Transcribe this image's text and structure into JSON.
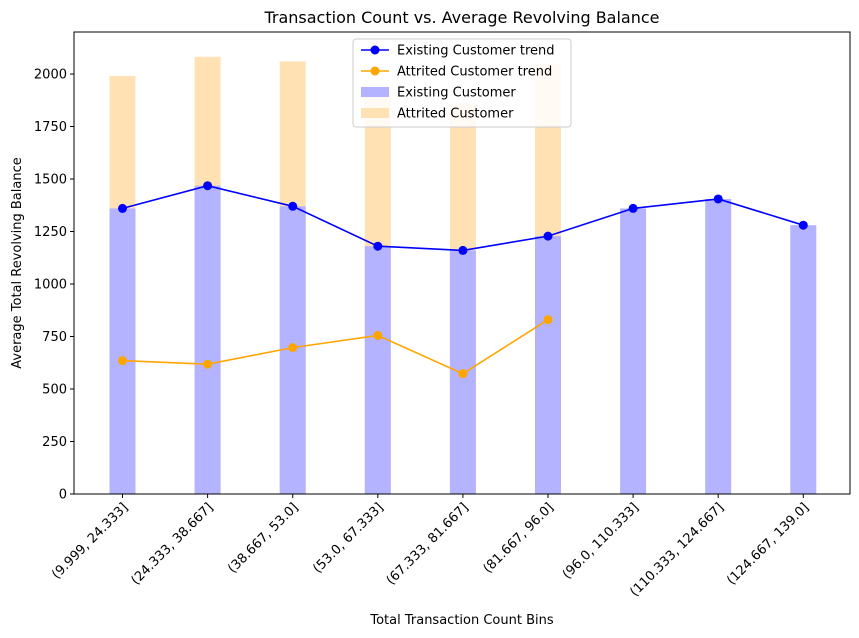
{
  "chart_data": {
    "type": "bar",
    "title": "Transaction Count vs. Average Revolving Balance",
    "xlabel": "Total Transaction Count Bins",
    "ylabel": "Average Total Revolving Balance",
    "ylim": [
      0,
      2200
    ],
    "yticks": [
      0,
      250,
      500,
      750,
      1000,
      1250,
      1500,
      1750,
      2000
    ],
    "categories": [
      "(9.999, 24.333]",
      "(24.333, 38.667]",
      "(38.667, 53.0]",
      "(53.0, 67.333]",
      "(67.333, 81.667]",
      "(81.667, 96.0]",
      "(96.0, 110.333]",
      "(110.333, 124.667]",
      "(124.667, 139.0]"
    ],
    "bar_series": [
      {
        "name": "Existing Customer",
        "color": "#b3b3ff",
        "values": [
          1360,
          1468,
          1370,
          1180,
          1160,
          1228,
          1360,
          1405,
          1280
        ]
      },
      {
        "name": "Attrited Customer",
        "color": "#ffe1b3",
        "values": [
          1990,
          2082,
          2060,
          1895,
          1860,
          2050,
          null,
          null,
          null
        ]
      }
    ],
    "line_series": [
      {
        "name": "Existing Customer trend",
        "color": "#0000ff",
        "values": [
          1360,
          1468,
          1370,
          1180,
          1160,
          1228,
          1360,
          1405,
          1280
        ]
      },
      {
        "name": "Attrited Customer trend",
        "color": "#ffa500",
        "values": [
          635,
          618,
          697,
          755,
          573,
          830,
          null,
          null,
          null
        ]
      }
    ],
    "legend": {
      "placement": "upper center",
      "entries": [
        "Existing Customer trend",
        "Attrited Customer trend",
        "Existing Customer",
        "Attrited Customer"
      ]
    },
    "grid": false
  }
}
